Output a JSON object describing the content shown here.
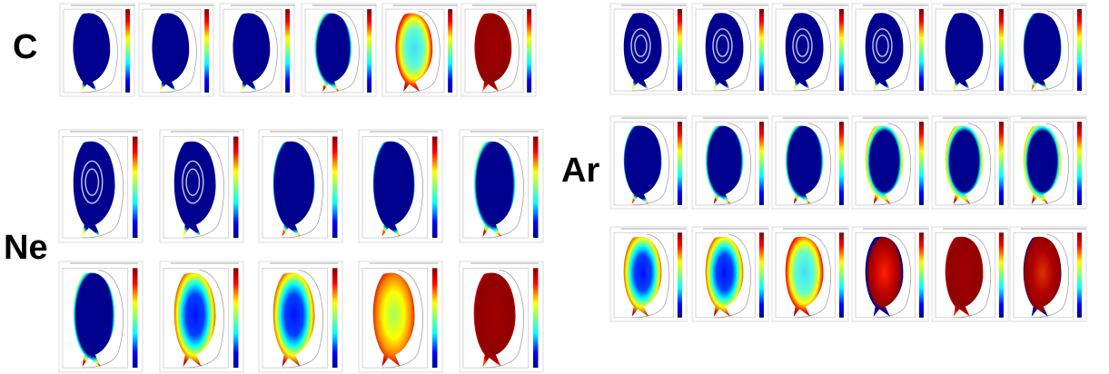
{
  "labels": {
    "c": "C",
    "ne": "Ne",
    "ar": "Ar"
  }
}
